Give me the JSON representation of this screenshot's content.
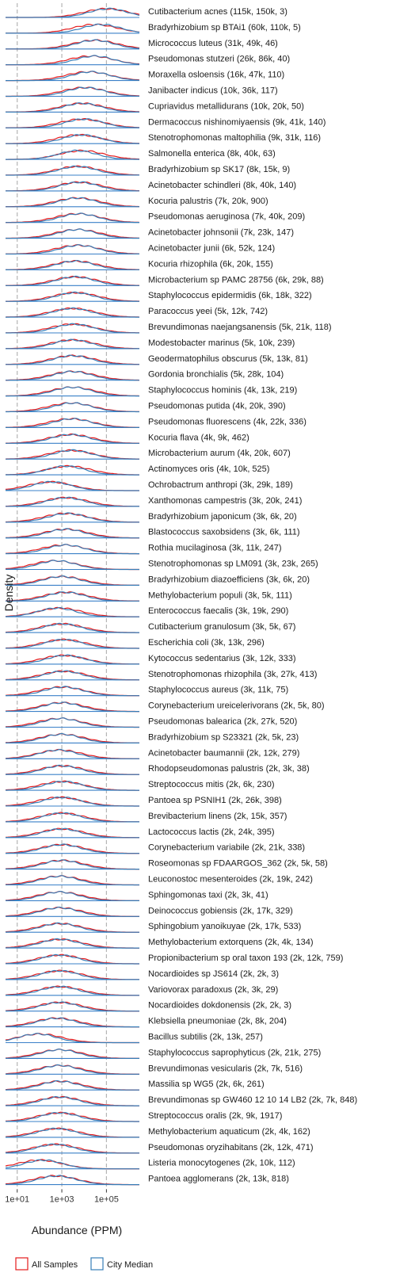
{
  "chart_data": {
    "type": "area",
    "title": "",
    "xlabel": "Abundance (PPM)",
    "ylabel": "Density",
    "x_scale": "log10",
    "xlim": [
      3,
      3000000
    ],
    "x_ticks": [
      {
        "value": 10,
        "label": "1e+01"
      },
      {
        "value": 1000,
        "label": "1e+03"
      },
      {
        "value": 100000,
        "label": "1e+05"
      }
    ],
    "grid": "dashed vertical lines at 1e+01, 1e+03, 1e+05",
    "legend": {
      "placement": "bottom-left",
      "entries": [
        {
          "name": "All Samples",
          "color": "#e41a1c"
        },
        {
          "name": "City Median",
          "color": "#377eb8"
        }
      ]
    },
    "colors": {
      "baseline": "#3a80c8",
      "grid": "#b5b5b5",
      "text": "#1a1a1a"
    },
    "series_names": [
      "All Samples",
      "City Median"
    ],
    "series": [
      {
        "label": "Cutibacterium acnes (115k, 150k, 3)",
        "peak_red": 100000,
        "peak_blue": 120000
      },
      {
        "label": "Bradyrhizobium sp  BTAi1 (60k, 110k, 5)",
        "peak_red": 30000,
        "peak_blue": 60000
      },
      {
        "label": "Micrococcus luteus (31k, 49k, 46)",
        "peak_red": 30000,
        "peak_blue": 30000
      },
      {
        "label": "Pseudomonas stutzeri (26k, 86k, 40)",
        "peak_red": 20000,
        "peak_blue": 30000
      },
      {
        "label": "Moraxella osloensis (16k, 47k, 110)",
        "peak_red": 15000,
        "peak_blue": 20000
      },
      {
        "label": "Janibacter indicus (10k, 36k, 117)",
        "peak_red": 10000,
        "peak_blue": 12000
      },
      {
        "label": "Cupriavidus metallidurans (10k, 20k, 50)",
        "peak_red": 8000,
        "peak_blue": 8000
      },
      {
        "label": "Dermacoccus nishinomiyaensis (9k, 41k, 140)",
        "peak_red": 8000,
        "peak_blue": 10000
      },
      {
        "label": "Stenotrophomonas maltophilia (9k, 31k, 116)",
        "peak_red": 6000,
        "peak_blue": 8000
      },
      {
        "label": "Salmonella enterica (8k, 40k, 63)",
        "peak_red": 8000,
        "peak_blue": 5000
      },
      {
        "label": "Bradyrhizobium sp  SK17 (8k, 15k, 9)",
        "peak_red": 5000,
        "peak_blue": 5000
      },
      {
        "label": "Acinetobacter schindleri (8k, 40k, 140)",
        "peak_red": 6000,
        "peak_blue": 6000
      },
      {
        "label": "Kocuria palustris (7k, 20k, 900)",
        "peak_red": 5000,
        "peak_blue": 5000
      },
      {
        "label": "Pseudomonas aeruginosa (7k, 40k, 209)",
        "peak_red": 5000,
        "peak_blue": 6000
      },
      {
        "label": "Acinetobacter johnsonii (7k, 23k, 147)",
        "peak_red": 5000,
        "peak_blue": 5000
      },
      {
        "label": "Acinetobacter junii (6k, 52k, 124)",
        "peak_red": 5000,
        "peak_blue": 6000
      },
      {
        "label": "Kocuria rhizophila (6k, 20k, 155)",
        "peak_red": 4000,
        "peak_blue": 4000
      },
      {
        "label": "Microbacterium sp  PAMC 28756 (6k, 29k, 88)",
        "peak_red": 4000,
        "peak_blue": 4000
      },
      {
        "label": "Staphylococcus epidermidis (6k, 18k, 322)",
        "peak_red": 4000,
        "peak_blue": 4000
      },
      {
        "label": "Paracoccus yeei (5k, 12k, 742)",
        "peak_red": 3000,
        "peak_blue": 3000
      },
      {
        "label": "Brevundimonas naejangsanensis (5k, 21k, 118)",
        "peak_red": 3000,
        "peak_blue": 3500
      },
      {
        "label": "Modestobacter marinus (5k, 10k, 239)",
        "peak_red": 3000,
        "peak_blue": 3000
      },
      {
        "label": "Geodermatophilus obscurus (5k, 13k, 81)",
        "peak_red": 3000,
        "peak_blue": 3000
      },
      {
        "label": "Gordonia bronchialis (5k, 28k, 104)",
        "peak_red": 3000,
        "peak_blue": 3000
      },
      {
        "label": "Staphylococcus hominis (4k, 13k, 219)",
        "peak_red": 3000,
        "peak_blue": 3000
      },
      {
        "label": "Pseudomonas putida (4k, 20k, 390)",
        "peak_red": 2500,
        "peak_blue": 3000
      },
      {
        "label": "Pseudomonas fluorescens (4k, 22k, 336)",
        "peak_red": 2500,
        "peak_blue": 3000
      },
      {
        "label": "Kocuria flava (4k, 9k, 462)",
        "peak_red": 2500,
        "peak_blue": 2500
      },
      {
        "label": "Microbacterium aurum (4k, 20k, 607)",
        "peak_red": 2500,
        "peak_blue": 3000
      },
      {
        "label": "Actinomyces oris (4k, 10k, 525)",
        "peak_red": 2000,
        "peak_blue": 1500
      },
      {
        "label": "Ochrobactrum anthropi (3k, 29k, 189)",
        "peak_red": 300,
        "peak_blue": 350
      },
      {
        "label": "Xanthomonas campestris (3k, 20k, 241)",
        "peak_red": 1500,
        "peak_blue": 1500
      },
      {
        "label": "Bradyrhizobium japonicum (3k, 6k, 20)",
        "peak_red": 1500,
        "peak_blue": 1800
      },
      {
        "label": "Blastococcus saxobsidens (3k, 6k, 111)",
        "peak_red": 1500,
        "peak_blue": 1500
      },
      {
        "label": "Rothia mucilaginosa (3k, 11k, 247)",
        "peak_red": 1200,
        "peak_blue": 1500
      },
      {
        "label": "Stenotrophomonas sp  LM091 (3k, 23k, 265)",
        "peak_red": 500,
        "peak_blue": 600
      },
      {
        "label": "Bradyrhizobium diazoefficiens (3k, 6k, 20)",
        "peak_red": 1000,
        "peak_blue": 1000
      },
      {
        "label": "Methylobacterium populi (3k, 5k, 111)",
        "peak_red": 1500,
        "peak_blue": 1500
      },
      {
        "label": "Enterococcus faecalis (3k, 19k, 290)",
        "peak_red": 800,
        "peak_blue": 600
      },
      {
        "label": "Cutibacterium granulosum (3k, 5k, 67)",
        "peak_red": 1000,
        "peak_blue": 1000
      },
      {
        "label": "Escherichia coli (3k, 13k, 296)",
        "peak_red": 1200,
        "peak_blue": 1200
      },
      {
        "label": "Kytococcus sedentarius (3k, 12k, 333)",
        "peak_red": 1200,
        "peak_blue": 1500
      },
      {
        "label": "Stenotrophomonas rhizophila (3k, 27k, 413)",
        "peak_red": 1200,
        "peak_blue": 1200
      },
      {
        "label": "Staphylococcus aureus (3k, 11k, 75)",
        "peak_red": 1000,
        "peak_blue": 1200
      },
      {
        "label": "Corynebacterium ureicelerivorans (2k, 5k, 80)",
        "peak_red": 1000,
        "peak_blue": 1000
      },
      {
        "label": "Pseudomonas balearica (2k, 27k, 520)",
        "peak_red": 800,
        "peak_blue": 900
      },
      {
        "label": "Bradyrhizobium sp  S23321 (2k, 5k, 23)",
        "peak_red": 1000,
        "peak_blue": 1000
      },
      {
        "label": "Acinetobacter baumannii (2k, 12k, 279)",
        "peak_red": 800,
        "peak_blue": 700
      },
      {
        "label": "Rhodopseudomonas palustris (2k, 3k, 38)",
        "peak_red": 1000,
        "peak_blue": 1000
      },
      {
        "label": "Streptococcus mitis (2k, 6k, 230)",
        "peak_red": 1000,
        "peak_blue": 1200
      },
      {
        "label": "Pantoea sp  PSNIH1 (2k, 26k, 398)",
        "peak_red": 800,
        "peak_blue": 1000
      },
      {
        "label": "Brevibacterium linens (2k, 15k, 357)",
        "peak_red": 1000,
        "peak_blue": 1000
      },
      {
        "label": "Lactococcus lactis (2k, 24k, 395)",
        "peak_red": 1000,
        "peak_blue": 1000
      },
      {
        "label": "Corynebacterium variabile (2k, 21k, 338)",
        "peak_red": 1000,
        "peak_blue": 1000
      },
      {
        "label": "Roseomonas sp  FDAARGOS_362 (2k, 5k, 58)",
        "peak_red": 1000,
        "peak_blue": 1000
      },
      {
        "label": "Leuconostoc mesenteroides (2k, 19k, 242)",
        "peak_red": 800,
        "peak_blue": 800
      },
      {
        "label": "Sphingomonas taxi (2k, 3k, 41)",
        "peak_red": 800,
        "peak_blue": 800
      },
      {
        "label": "Deinococcus gobiensis (2k, 17k, 329)",
        "peak_red": 800,
        "peak_blue": 800
      },
      {
        "label": "Sphingobium yanoikuyae (2k, 17k, 533)",
        "peak_red": 800,
        "peak_blue": 800
      },
      {
        "label": "Methylobacterium extorquens (2k, 4k, 134)",
        "peak_red": 800,
        "peak_blue": 800
      },
      {
        "label": "Propionibacterium sp  oral taxon 193 (2k, 12k, 759)",
        "peak_red": 800,
        "peak_blue": 800
      },
      {
        "label": "Nocardioides sp  JS614 (2k, 2k, 3)",
        "peak_red": 800,
        "peak_blue": 800
      },
      {
        "label": "Variovorax paradoxus (2k, 3k, 29)",
        "peak_red": 800,
        "peak_blue": 800
      },
      {
        "label": "Nocardioides dokdonensis (2k, 2k, 3)",
        "peak_red": 800,
        "peak_blue": 800
      },
      {
        "label": "Klebsiella pneumoniae (2k, 8k, 204)",
        "peak_red": 600,
        "peak_blue": 600
      },
      {
        "label": "Bacillus subtilis (2k, 13k, 257)",
        "peak_red": 100,
        "peak_blue": 80
      },
      {
        "label": "Staphylococcus saprophyticus (2k, 21k, 275)",
        "peak_red": 800,
        "peak_blue": 800
      },
      {
        "label": "Brevundimonas vesicularis (2k, 7k, 516)",
        "peak_red": 800,
        "peak_blue": 800
      },
      {
        "label": "Massilia sp  WG5 (2k, 6k, 261)",
        "peak_red": 800,
        "peak_blue": 800
      },
      {
        "label": "Brevundimonas sp  GW460 12 10 14 LB2 (2k, 7k, 848)",
        "peak_red": 800,
        "peak_blue": 800
      },
      {
        "label": "Streptococcus oralis (2k, 9k, 1917)",
        "peak_red": 800,
        "peak_blue": 800
      },
      {
        "label": "Methylobacterium aquaticum (2k, 4k, 162)",
        "peak_red": 600,
        "peak_blue": 600
      },
      {
        "label": "Pseudomonas oryzihabitans (2k, 12k, 471)",
        "peak_red": 500,
        "peak_blue": 500
      },
      {
        "label": "Listeria monocytogenes (2k, 10k, 112)",
        "peak_red": 100,
        "peak_blue": 150
      },
      {
        "label": "Pantoea agglomerans (2k, 13k, 818)",
        "peak_red": 500,
        "peak_blue": 600
      }
    ]
  }
}
